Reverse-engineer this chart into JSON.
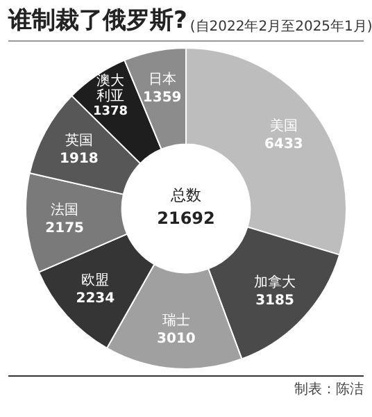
{
  "chart_data": {
    "type": "donut",
    "title": "谁制裁了俄罗斯?",
    "subtitle": "(自2022年2月至2025年1月)",
    "categories": [
      "美国",
      "加拿大",
      "瑞士",
      "欧盟",
      "法国",
      "英国",
      "澳大利亚",
      "日本"
    ],
    "values": [
      6433,
      3185,
      3010,
      2234,
      2175,
      1918,
      1378,
      1359
    ],
    "colors": [
      "#bdbdbd",
      "#4a4a4a",
      "#a0a0a0",
      "#353535",
      "#7a7a7a",
      "#575757",
      "#1e1e1e",
      "#8c8c8c"
    ],
    "data_labels": true,
    "legend": false,
    "annotations": [
      "总数",
      "21692",
      "制表：陈洁"
    ]
  }
}
